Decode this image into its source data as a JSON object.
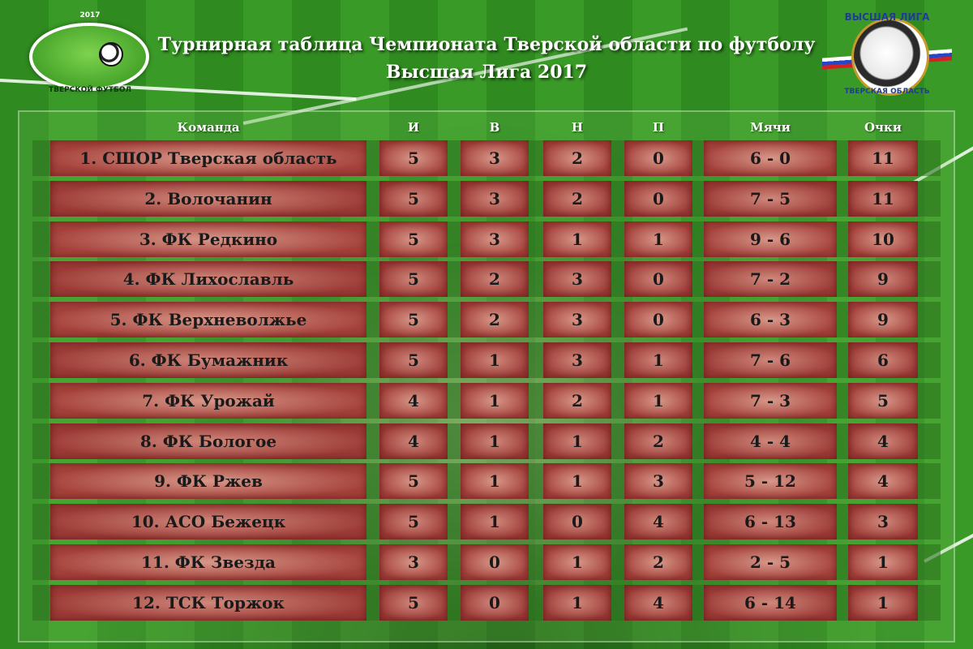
{
  "header": {
    "title_line1": "Турнирная таблица Чемпионата Тверской области по футболу",
    "title_line2": "Высшая Лига 2017"
  },
  "logo_left": {
    "year": "2017",
    "caption": "ТВЕРСКОЙ ФУТБОЛ",
    "icon": "football-ball-icon"
  },
  "logo_right": {
    "top_text": "ВЫСШАЯ ЛИГА",
    "bottom_text": "ТВЕРСКАЯ ОБЛАСТЬ",
    "icon": "league-emblem-icon"
  },
  "table": {
    "columns": {
      "team": "Команда",
      "played": "И",
      "won": "В",
      "drawn": "Н",
      "lost": "П",
      "goals": "Мячи",
      "points": "Очки"
    },
    "rows": [
      {
        "team": "1. СШОР Тверская область",
        "played": "5",
        "won": "3",
        "drawn": "2",
        "lost": "0",
        "goals": "6 - 0",
        "points": "11"
      },
      {
        "team": "2. Волочанин",
        "played": "5",
        "won": "3",
        "drawn": "2",
        "lost": "0",
        "goals": "7 - 5",
        "points": "11"
      },
      {
        "team": "3. ФК Редкино",
        "played": "5",
        "won": "3",
        "drawn": "1",
        "lost": "1",
        "goals": "9 - 6",
        "points": "10"
      },
      {
        "team": "4. ФК Лихославль",
        "played": "5",
        "won": "2",
        "drawn": "3",
        "lost": "0",
        "goals": "7 - 2",
        "points": "9"
      },
      {
        "team": "5. ФК Верхневолжье",
        "played": "5",
        "won": "2",
        "drawn": "3",
        "lost": "0",
        "goals": "6 - 3",
        "points": "9"
      },
      {
        "team": "6. ФК Бумажник",
        "played": "5",
        "won": "1",
        "drawn": "3",
        "lost": "1",
        "goals": "7 - 6",
        "points": "6"
      },
      {
        "team": "7. ФК Урожай",
        "played": "4",
        "won": "1",
        "drawn": "2",
        "lost": "1",
        "goals": "7 - 3",
        "points": "5"
      },
      {
        "team": "8. ФК Бологое",
        "played": "4",
        "won": "1",
        "drawn": "1",
        "lost": "2",
        "goals": "4 - 4",
        "points": "4"
      },
      {
        "team": "9. ФК Ржев",
        "played": "5",
        "won": "1",
        "drawn": "1",
        "lost": "3",
        "goals": "5 - 12",
        "points": "4"
      },
      {
        "team": "10. АСО Бежецк",
        "played": "5",
        "won": "1",
        "drawn": "0",
        "lost": "4",
        "goals": "6 - 13",
        "points": "3"
      },
      {
        "team": "11. ФК Звезда",
        "played": "3",
        "won": "0",
        "drawn": "1",
        "lost": "2",
        "goals": "2 - 5",
        "points": "1"
      },
      {
        "team": "12. ТСК Торжок",
        "played": "5",
        "won": "0",
        "drawn": "1",
        "lost": "4",
        "goals": "6 - 14",
        "points": "1"
      }
    ]
  }
}
